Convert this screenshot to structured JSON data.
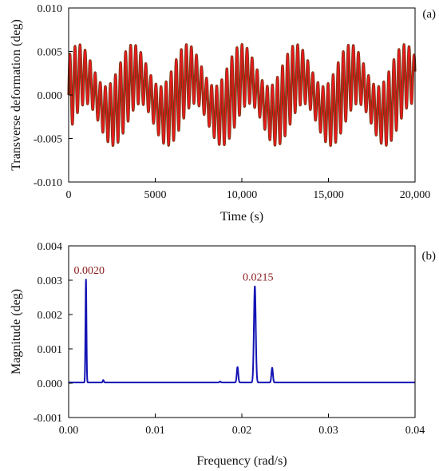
{
  "figure": {
    "background": "#ffffff",
    "axis_color": "#000000"
  },
  "chart_data": [
    {
      "type": "line",
      "panel_label": "(a)",
      "xlabel": "Time (s)",
      "ylabel": "Transverse deformation (deg)",
      "xlim": [
        0,
        20000
      ],
      "ylim": [
        -0.01,
        0.01
      ],
      "x_ticks": [
        0,
        5000,
        10000,
        15000,
        20000
      ],
      "x_tick_labels": [
        "0",
        "5000",
        "10,000",
        "15,000",
        "20,000"
      ],
      "y_ticks": [
        -0.01,
        -0.005,
        0,
        0.005,
        0.01
      ],
      "y_tick_labels": [
        "-0.010",
        "-0.005",
        "0.000",
        "0.005",
        "0.010"
      ],
      "grid": false,
      "series": [
        {
          "components": [
            {
              "amplitude": 0.0022,
              "frequency_rad_s": 0.002
            },
            {
              "amplitude": 0.0034,
              "frequency_rad_s": 0.0215
            },
            {
              "amplitude": 0.0005,
              "frequency_rad_s": 0.0195
            },
            {
              "amplitude": 0.0005,
              "frequency_rad_s": 0.0235
            }
          ],
          "color": "#e8191d",
          "shadow_color": "#6b3a12"
        }
      ]
    },
    {
      "type": "line",
      "panel_label": "(b)",
      "xlabel": "Frequency (rad/s)",
      "ylabel": "Magnitude (deg)",
      "xlim": [
        0,
        0.04
      ],
      "ylim": [
        -0.001,
        0.004
      ],
      "x_ticks": [
        0,
        0.01,
        0.02,
        0.03,
        0.04
      ],
      "x_tick_labels": [
        "0.00",
        "0.01",
        "0.02",
        "0.03",
        "0.04"
      ],
      "y_ticks": [
        -0.001,
        0,
        0.001,
        0.002,
        0.003,
        0.004
      ],
      "y_tick_labels": [
        "-0.001",
        "0.000",
        "0.001",
        "0.002",
        "0.003",
        "0.004"
      ],
      "grid": false,
      "series": [
        {
          "baseline": 2e-05,
          "peaks": [
            {
              "x": 0.002,
              "y": 0.003,
              "width": 8e-05
            },
            {
              "x": 0.004,
              "y": 7e-05,
              "width": 9e-05
            },
            {
              "x": 0.0175,
              "y": 3e-05,
              "width": 0.0001
            },
            {
              "x": 0.0195,
              "y": 0.00045,
              "width": 0.00012
            },
            {
              "x": 0.0215,
              "y": 0.0028,
              "width": 0.00015
            },
            {
              "x": 0.0235,
              "y": 0.00043,
              "width": 0.00012
            }
          ],
          "color": "#1414b4"
        }
      ],
      "annotations": [
        {
          "text": "0.0020",
          "x": 0.002,
          "y": 0.003
        },
        {
          "text": "0.0215",
          "x": 0.0215,
          "y": 0.0028
        }
      ]
    }
  ]
}
